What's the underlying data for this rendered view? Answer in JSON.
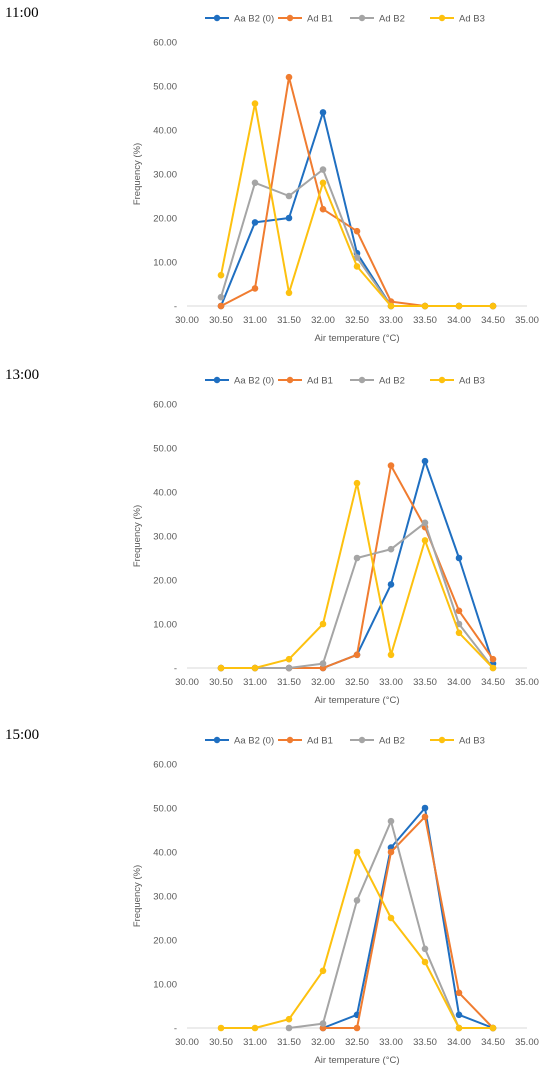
{
  "chart_data": [
    {
      "type": "line",
      "panel_label": "11:00",
      "xlabel": "Air temperature (°C)",
      "ylabel": "Frequency (%)",
      "xlim": [
        30.0,
        35.0
      ],
      "ylim": [
        0,
        60
      ],
      "x_ticks": [
        "30.00",
        "30.50",
        "31.00",
        "31.50",
        "32.00",
        "32.50",
        "33.00",
        "33.50",
        "34.00",
        "34.50",
        "35.00"
      ],
      "y_ticks": [
        "-",
        "10.00",
        "20.00",
        "30.00",
        "40.00",
        "50.00",
        "60.00"
      ],
      "x": [
        30.5,
        31.0,
        31.5,
        32.0,
        32.5,
        33.0,
        33.5,
        34.0,
        34.5
      ],
      "legend_position": "top",
      "series": [
        {
          "name": "Aa B2 (0)",
          "color": "#1f6fc1",
          "values": [
            0,
            19,
            20,
            44,
            12,
            0,
            0,
            0,
            0
          ]
        },
        {
          "name": "Ad B1",
          "color": "#f07c30",
          "values": [
            0,
            4,
            52,
            22,
            17,
            1,
            0,
            0,
            0
          ]
        },
        {
          "name": "Ad B2",
          "color": "#a5a5a5",
          "values": [
            2,
            28,
            25,
            31,
            11,
            0,
            0,
            0,
            0
          ]
        },
        {
          "name": "Ad B3",
          "color": "#fdc10f",
          "values": [
            7,
            46,
            3,
            28,
            9,
            0,
            0,
            0,
            0
          ]
        }
      ]
    },
    {
      "type": "line",
      "panel_label": "13:00",
      "xlabel": "Air temperature (°C)",
      "ylabel": "Frequency (%)",
      "xlim": [
        30.0,
        35.0
      ],
      "ylim": [
        0,
        60
      ],
      "x_ticks": [
        "30.00",
        "30.50",
        "31.00",
        "31.50",
        "32.00",
        "32.50",
        "33.00",
        "33.50",
        "34.00",
        "34.50",
        "35.00"
      ],
      "y_ticks": [
        "-",
        "10.00",
        "20.00",
        "30.00",
        "40.00",
        "50.00",
        "60.00"
      ],
      "x": [
        30.5,
        31.0,
        31.5,
        32.0,
        32.5,
        33.0,
        33.5,
        34.0,
        34.5
      ],
      "legend_position": "top",
      "series": [
        {
          "name": "Aa B2 (0)",
          "color": "#1f6fc1",
          "values": [
            0,
            0,
            0,
            0,
            3,
            19,
            47,
            25,
            1
          ]
        },
        {
          "name": "Ad B1",
          "color": "#f07c30",
          "values": [
            0,
            0,
            0,
            0,
            3,
            46,
            32,
            13,
            2
          ]
        },
        {
          "name": "Ad B2",
          "color": "#a5a5a5",
          "values": [
            0,
            0,
            0,
            1,
            25,
            27,
            33,
            10,
            0
          ]
        },
        {
          "name": "Ad B3",
          "color": "#fdc10f",
          "values": [
            0,
            0,
            2,
            10,
            42,
            3,
            29,
            8,
            0
          ]
        }
      ]
    },
    {
      "type": "line",
      "panel_label": "15:00",
      "xlabel": "Air temperature (°C)",
      "ylabel": "Frequency (%)",
      "xlim": [
        30.0,
        35.0
      ],
      "ylim": [
        0,
        60
      ],
      "x_ticks": [
        "30.00",
        "30.50",
        "31.00",
        "31.50",
        "32.00",
        "32.50",
        "33.00",
        "33.50",
        "34.00",
        "34.50",
        "35.00"
      ],
      "y_ticks": [
        "-",
        "10.00",
        "20.00",
        "30.00",
        "40.00",
        "50.00",
        "60.00"
      ],
      "x": [
        30.5,
        31.0,
        31.5,
        32.0,
        32.5,
        33.0,
        33.5,
        34.0,
        34.5
      ],
      "legend_position": "top",
      "series": [
        {
          "name": "Aa B2 (0)",
          "color": "#1f6fc1",
          "values": [
            null,
            null,
            null,
            0,
            3,
            41,
            50,
            3,
            0
          ]
        },
        {
          "name": "Ad B1",
          "color": "#f07c30",
          "values": [
            null,
            null,
            null,
            0,
            0,
            40,
            48,
            8,
            0
          ]
        },
        {
          "name": "Ad B2",
          "color": "#a5a5a5",
          "values": [
            null,
            null,
            0,
            1,
            29,
            47,
            18,
            0,
            0
          ]
        },
        {
          "name": "Ad B3",
          "color": "#fdc10f",
          "values": [
            0,
            0,
            2,
            13,
            40,
            25,
            15,
            0,
            0
          ]
        }
      ]
    }
  ]
}
